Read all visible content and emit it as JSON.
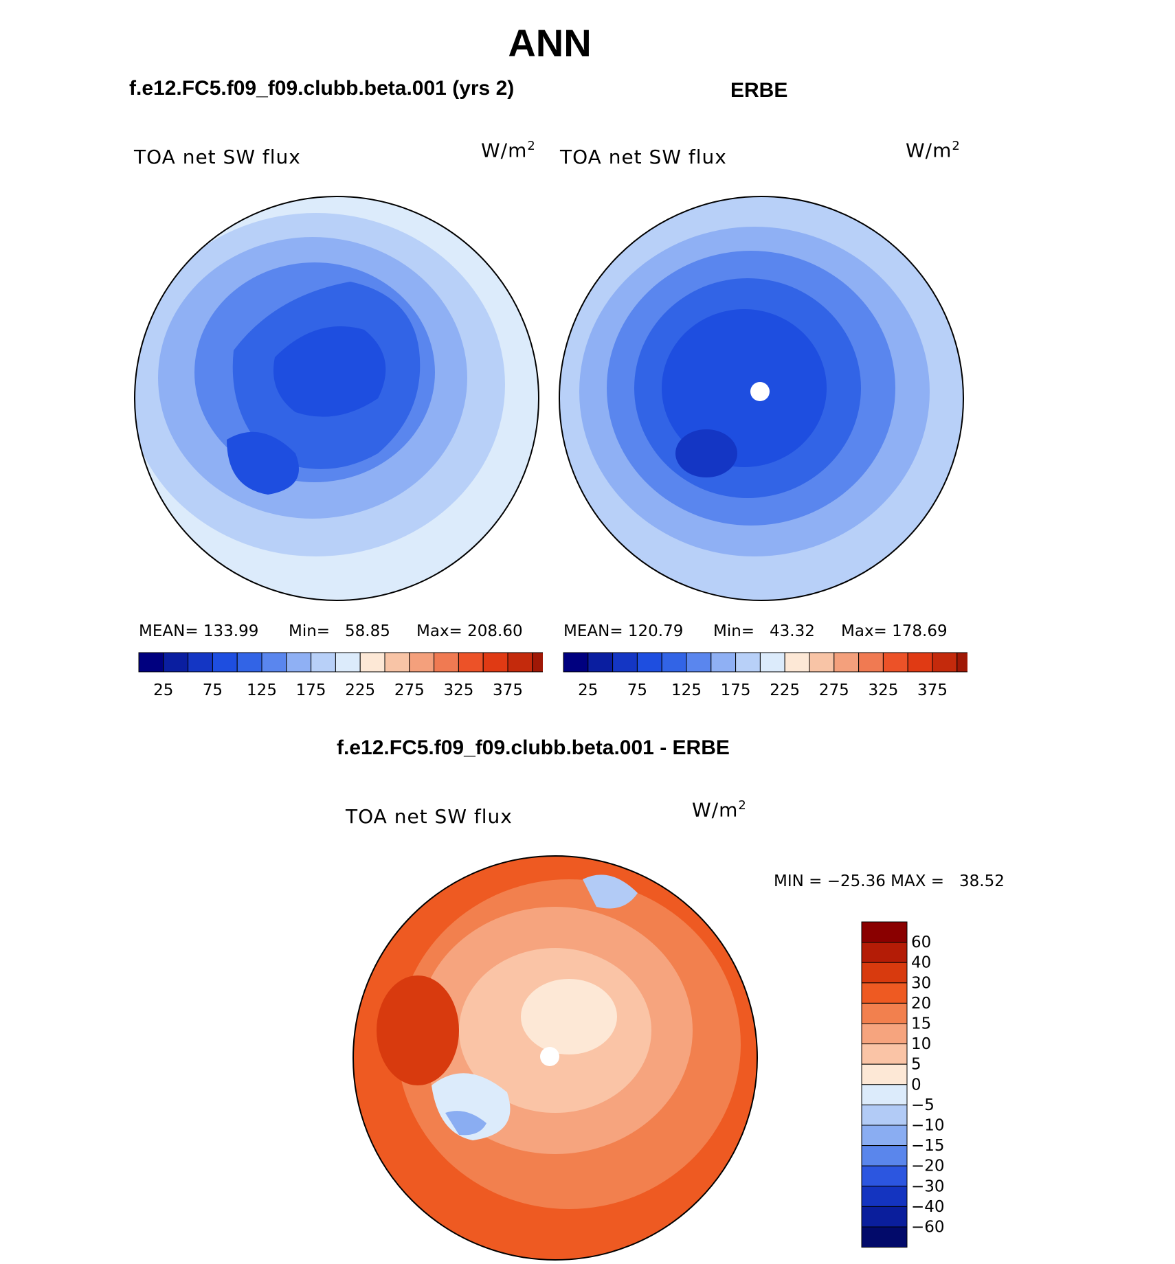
{
  "title": "ANN",
  "panels": [
    {
      "heading": "f.e12.FC5.f09_f09.clubb.beta.001 (yrs 2)",
      "variable": "TOA net SW flux",
      "units_base": "W/m",
      "units_exp": "2",
      "stats": {
        "mean": "MEAN= 133.99",
        "min": "Min=   58.85",
        "max": "Max= 208.60"
      }
    },
    {
      "heading": "ERBE",
      "variable": "TOA net SW flux",
      "units_base": "W/m",
      "units_exp": "2",
      "stats": {
        "mean": "MEAN= 120.79",
        "min": "Min=   43.32",
        "max": "Max= 178.69"
      }
    },
    {
      "heading": "f.e12.FC5.f09_f09.clubb.beta.001 - ERBE",
      "variable": "TOA net SW flux",
      "units_base": "W/m",
      "units_exp": "2",
      "stats": {
        "minmax": "MIN = −25.36 MAX =   38.52"
      }
    }
  ],
  "colorbar_abs": {
    "ticks": [
      "25",
      "75",
      "125",
      "175",
      "225",
      "275",
      "325",
      "375"
    ],
    "colors": [
      "#00007f",
      "#0a1ea0",
      "#1436c4",
      "#1e4ee0",
      "#3264e6",
      "#5a86ee",
      "#8fb0f4",
      "#b8d0f8",
      "#dcebfb",
      "#fde8d6",
      "#f8c4a6",
      "#f4a07c",
      "#f07a52",
      "#ec5228",
      "#e03a14",
      "#c42a0c",
      "#a01806",
      "#7a0000"
    ]
  },
  "colorbar_diff": {
    "labels": [
      "60",
      "40",
      "30",
      "20",
      "15",
      "10",
      "5",
      "0",
      "−5",
      "−10",
      "−15",
      "−20",
      "−30",
      "−40",
      "−60"
    ],
    "colors": [
      "#8a0000",
      "#b41c06",
      "#d83a0e",
      "#ee5a22",
      "#f2804e",
      "#f6a47e",
      "#fac4a6",
      "#fde8d6",
      "#dcebfb",
      "#b2cbf6",
      "#8aadf2",
      "#5a86ec",
      "#2c56e0",
      "#1434c0",
      "#0a1e9c",
      "#020a6a"
    ]
  }
}
